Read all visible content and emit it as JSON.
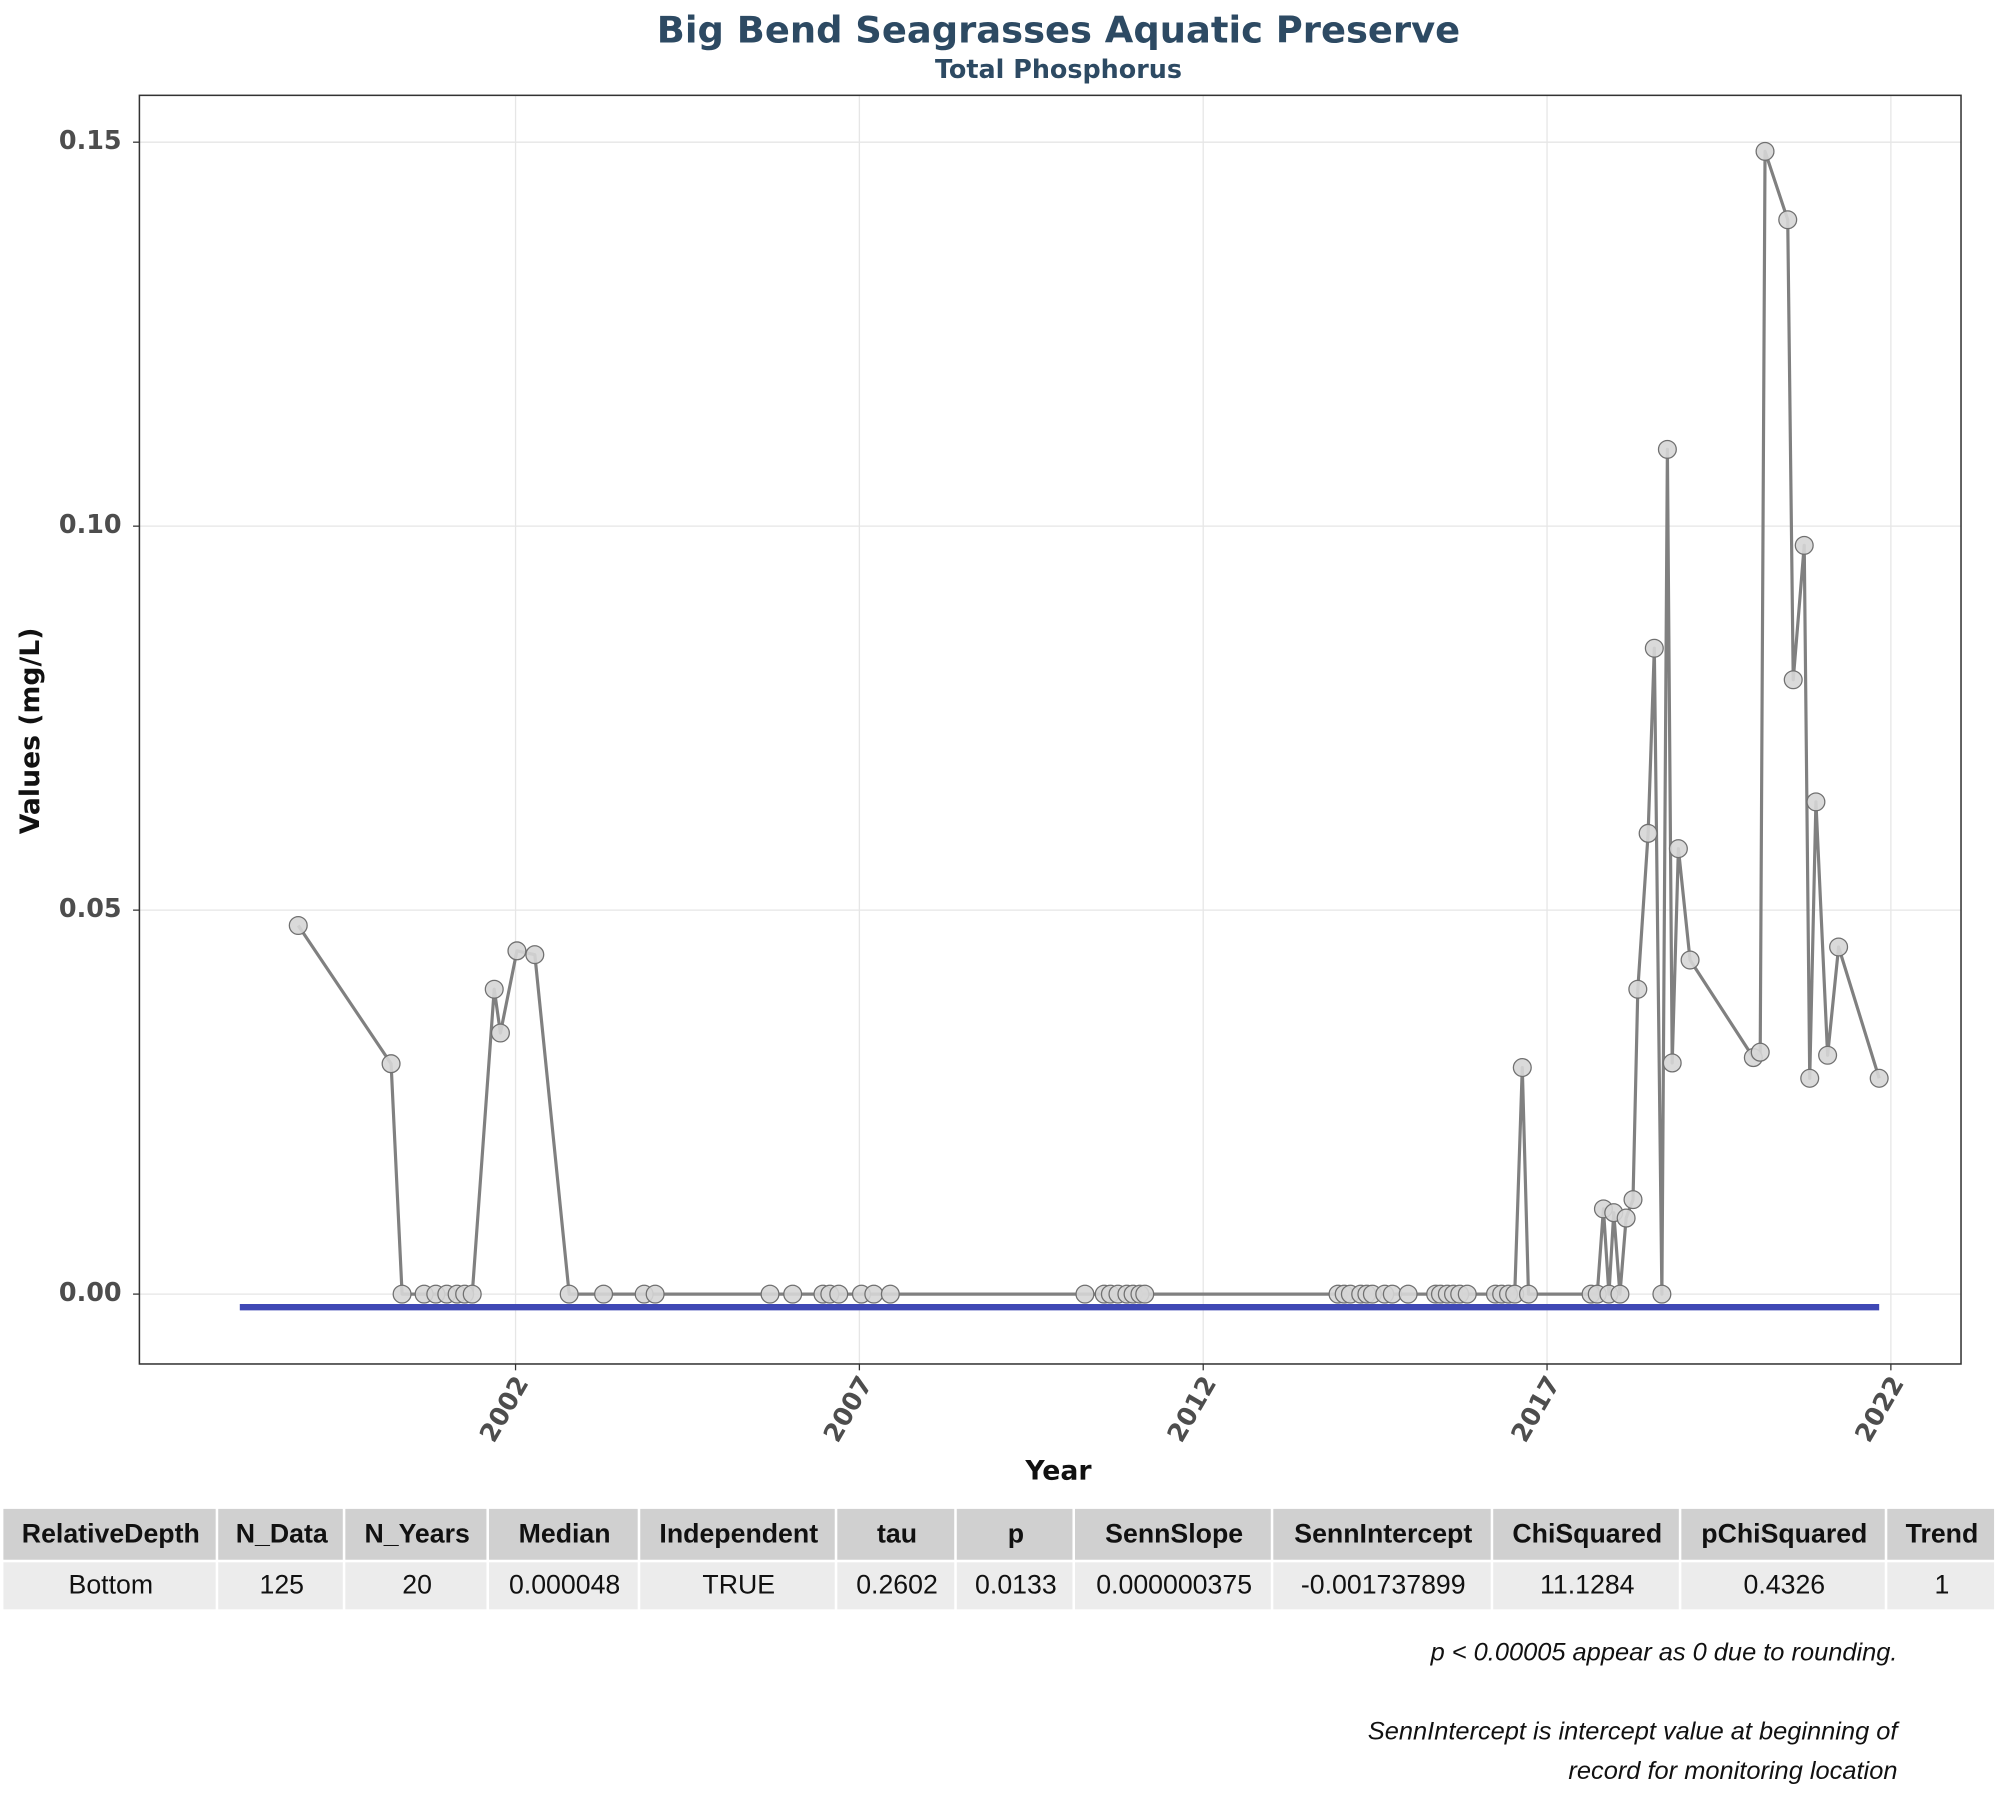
{
  "chart_data": {
    "type": "line",
    "title": "Big Bend Seagrasses Aquatic Preserve",
    "subtitle": "Total Phosphorus",
    "x_label": "Year",
    "y_label": "Values (mg/L)",
    "xlim": [
      1996.53,
      2023.02
    ],
    "ylim": [
      -0.0091,
      0.1561
    ],
    "xticks": [
      2002,
      2007,
      2012,
      2017,
      2022
    ],
    "yticks": [
      {
        "value": 0,
        "label": "0.00"
      },
      {
        "value": 0.05,
        "label": "0.05"
      },
      {
        "value": 0.1,
        "label": "0.10"
      },
      {
        "value": 0.15,
        "label": "0.15"
      }
    ],
    "grid": true,
    "color": "#808080",
    "x": [
      1998.84,
      2000.19,
      2000.35,
      2000.67,
      2000.84,
      2001.0,
      2001.15,
      2001.26,
      2001.37,
      2001.69,
      2001.78,
      2002.02,
      2002.28,
      2002.78,
      2003.28,
      2003.87,
      2004.03,
      2005.7,
      2006.03,
      2006.47,
      2006.57,
      2006.7,
      2007.03,
      2007.21,
      2007.45,
      2010.28,
      2010.56,
      2010.65,
      2010.76,
      2010.89,
      2010.98,
      2011.08,
      2011.15,
      2013.96,
      2014.05,
      2014.14,
      2014.29,
      2014.38,
      2014.46,
      2014.64,
      2014.75,
      2014.98,
      2015.38,
      2015.45,
      2015.55,
      2015.64,
      2015.73,
      2015.84,
      2016.25,
      2016.34,
      2016.44,
      2016.53,
      2016.64,
      2016.73,
      2017.64,
      2017.73,
      2017.82,
      2017.9,
      2017.97,
      2018.06,
      2018.15,
      2018.25,
      2018.32,
      2018.47,
      2018.56,
      2018.67,
      2018.75,
      2018.82,
      2018.91,
      2019.08,
      2020.0,
      2020.1,
      2020.17,
      2020.5,
      2020.58,
      2020.74,
      2020.82,
      2020.91,
      2021.08,
      2021.24,
      2021.83
    ],
    "values": [
      0.048,
      0.03,
      0,
      0,
      0,
      0,
      0,
      0,
      0,
      0.0397,
      0.034,
      0.0447,
      0.0442,
      0,
      0,
      0,
      0,
      0,
      0,
      0,
      0,
      0,
      0,
      0,
      0,
      0,
      0,
      0,
      0,
      0,
      0,
      0,
      0,
      0,
      0,
      0,
      0,
      0,
      0,
      0,
      0,
      0,
      0,
      0,
      0,
      0,
      0,
      0,
      0,
      0,
      0,
      0,
      0.0295,
      0,
      0,
      0,
      0.0111,
      0,
      0.0106,
      0,
      0.0099,
      0.0123,
      0.0397,
      0.06,
      0.0841,
      0,
      0.11,
      0.0301,
      0.058,
      0.0435,
      0.0308,
      0.0315,
      0.1488,
      0.1399,
      0.08,
      0.0975,
      0.0281,
      0.0641,
      0.0311,
      0.0452,
      0.0281
    ],
    "trend": {
      "color": "#3f48b5",
      "x": [
        1997.99,
        2021.83
      ],
      "values": [
        -0.0017,
        -0.0017
      ]
    }
  },
  "table": {
    "header": [
      "RelativeDepth",
      "N_Data",
      "N_Years",
      "Median",
      "Independent",
      "tau",
      "p",
      "SennSlope",
      "SennIntercept",
      "ChiSquared",
      "pChiSquared",
      "Trend"
    ],
    "rows": [
      [
        "Bottom",
        "125",
        "20",
        "0.000048",
        "TRUE",
        "0.2602",
        "0.0133",
        "0.000000375",
        "-0.001737899",
        "11.1284",
        "0.4326",
        "1"
      ]
    ]
  },
  "notes": [
    "p < 0.00005 appear as 0 due to rounding.",
    "SennIntercept is intercept value at beginning of",
    "record for monitoring location"
  ]
}
